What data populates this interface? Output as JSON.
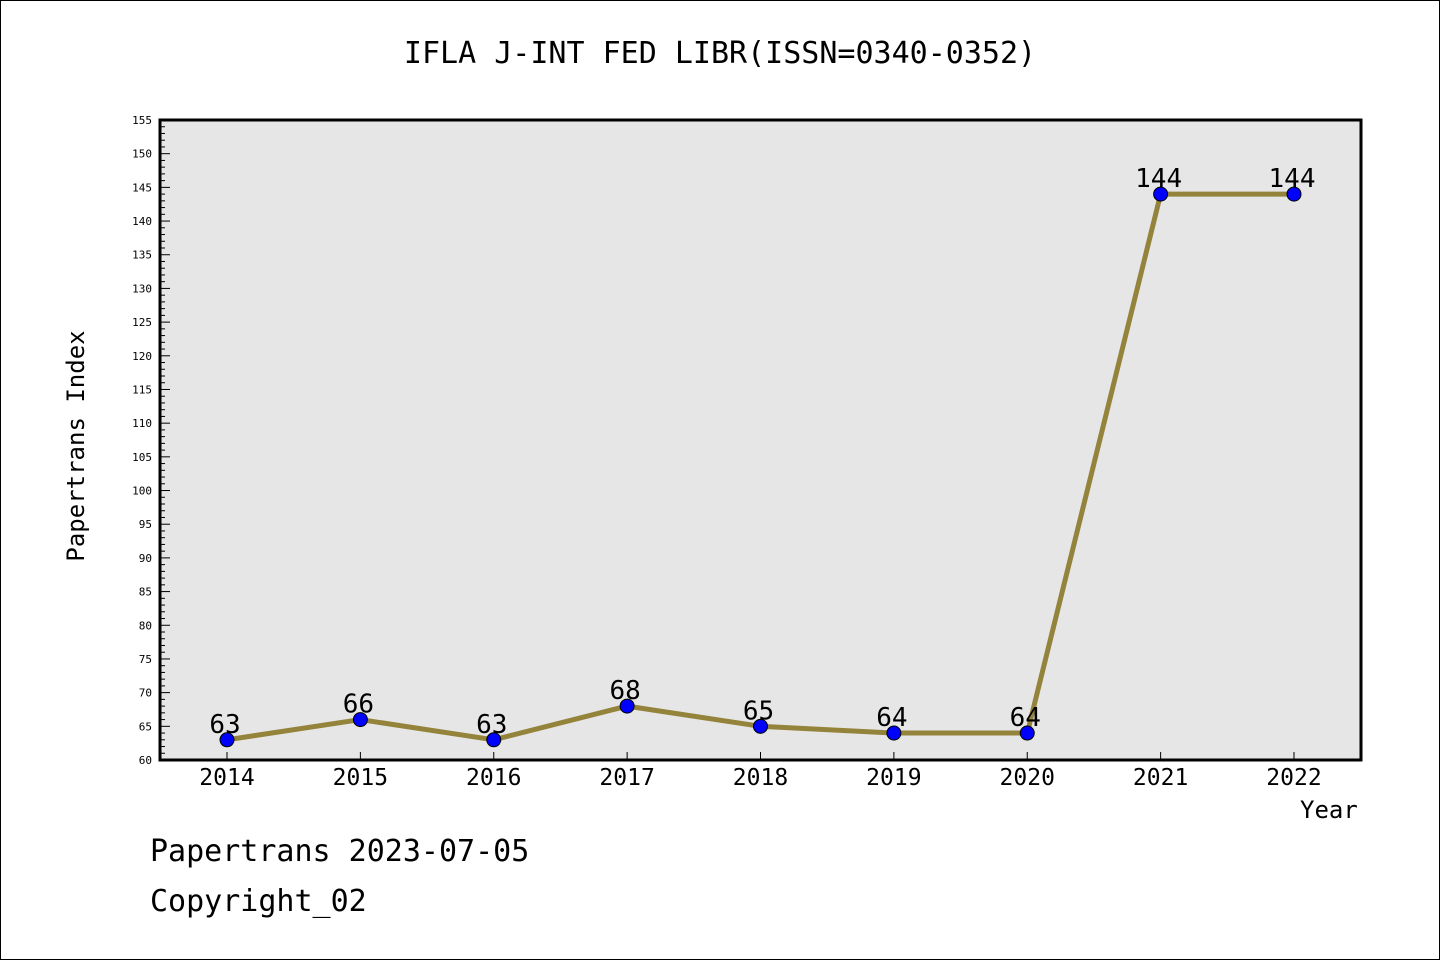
{
  "chart_data": {
    "type": "line",
    "title": "IFLA J-INT FED LIBR(ISSN=0340-0352)",
    "xlabel": "Year",
    "ylabel": "Papertrans Index",
    "categories": [
      "2014",
      "2015",
      "2016",
      "2017",
      "2018",
      "2019",
      "2020",
      "2021",
      "2022"
    ],
    "values": [
      63,
      66,
      63,
      68,
      65,
      64,
      64,
      144,
      144
    ],
    "ylim": [
      60,
      155
    ],
    "y_tick_step": 5,
    "grid": false,
    "legend": "none",
    "line_color": "#94833a",
    "marker_color": "#0000ff",
    "plot_background": "#e6e6e6"
  },
  "footer": {
    "line1": "Papertrans 2023-07-05",
    "line2": "Copyright_02"
  }
}
